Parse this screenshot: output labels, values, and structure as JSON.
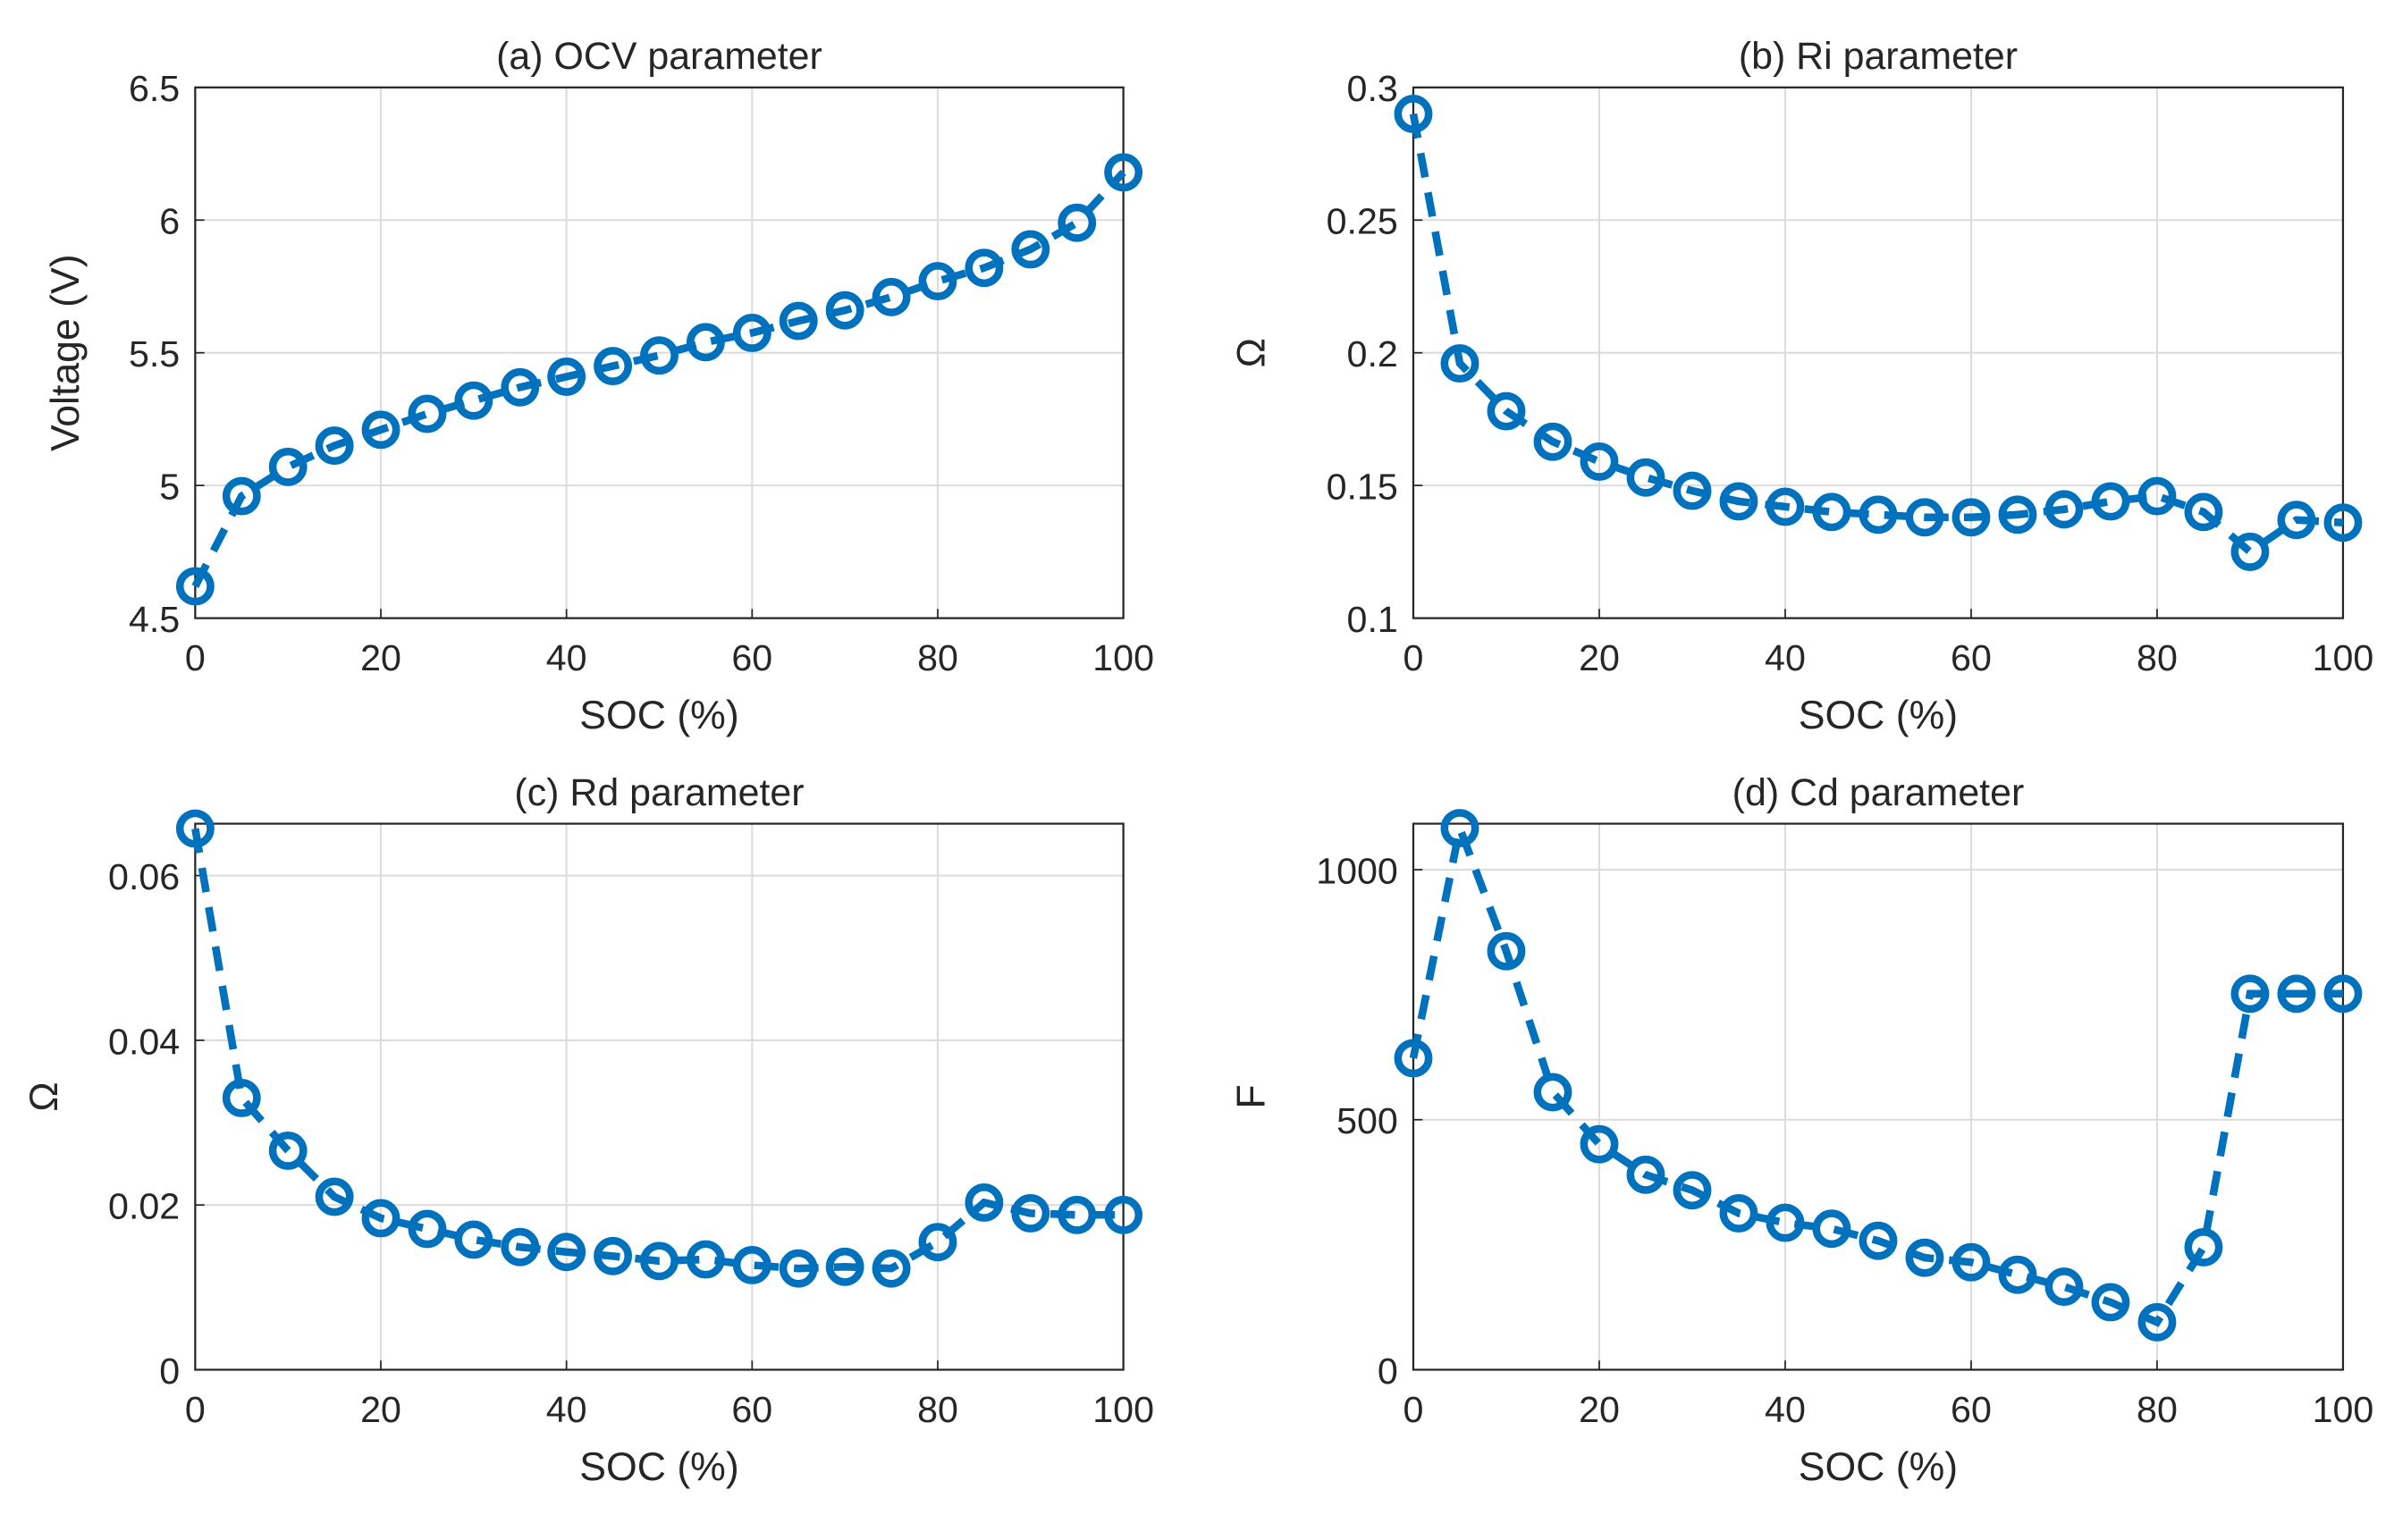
{
  "chart_data": [
    {
      "type": "line",
      "title": "(a) OCV parameter",
      "xlabel": "SOC (%)",
      "ylabel": "Voltage (V)",
      "xlim": [
        0,
        100
      ],
      "ylim": [
        4.5,
        6.5
      ],
      "xticks": [
        0,
        20,
        40,
        60,
        80,
        100
      ],
      "yticks": [
        4.5,
        5,
        5.5,
        6,
        6.5
      ],
      "ytick_labels": [
        "4.5",
        "5",
        "5.5",
        "6",
        "6.5"
      ],
      "grid": true,
      "x": [
        0,
        5,
        10,
        15,
        20,
        25,
        30,
        35,
        40,
        45,
        50,
        55,
        60,
        65,
        70,
        75,
        80,
        85,
        90,
        95,
        100
      ],
      "y": [
        4.62,
        4.96,
        5.07,
        5.15,
        5.21,
        5.27,
        5.32,
        5.37,
        5.41,
        5.45,
        5.49,
        5.54,
        5.575,
        5.62,
        5.66,
        5.71,
        5.77,
        5.82,
        5.89,
        5.99,
        6.18
      ]
    },
    {
      "type": "line",
      "title": "(b) Ri parameter",
      "xlabel": "SOC (%)",
      "ylabel": "Ω",
      "xlim": [
        0,
        100
      ],
      "ylim": [
        0.1,
        0.3
      ],
      "xticks": [
        0,
        20,
        40,
        60,
        80,
        100
      ],
      "yticks": [
        0.1,
        0.15,
        0.2,
        0.25,
        0.3
      ],
      "ytick_labels": [
        "0.1",
        "0.15",
        "0.2",
        "0.25",
        "0.3"
      ],
      "grid": true,
      "x": [
        0,
        5,
        10,
        15,
        20,
        25,
        30,
        35,
        40,
        45,
        50,
        55,
        60,
        65,
        70,
        75,
        80,
        85,
        90,
        95,
        100
      ],
      "y": [
        0.29,
        0.196,
        0.178,
        0.1665,
        0.159,
        0.153,
        0.148,
        0.144,
        0.142,
        0.14,
        0.139,
        0.138,
        0.138,
        0.139,
        0.141,
        0.144,
        0.146,
        0.14,
        0.125,
        0.137,
        0.136
      ]
    },
    {
      "type": "line",
      "title": "(c) Rd parameter",
      "xlabel": "SOC (%)",
      "ylabel": "Ω",
      "xlim": [
        0,
        100
      ],
      "ylim": [
        0,
        0.0663
      ],
      "xticks": [
        0,
        20,
        40,
        60,
        80,
        100
      ],
      "yticks": [
        0,
        0.02,
        0.04,
        0.06
      ],
      "ytick_labels": [
        "0",
        "0.02",
        "0.04",
        "0.06"
      ],
      "grid": true,
      "x": [
        0,
        5,
        10,
        15,
        20,
        25,
        30,
        35,
        40,
        45,
        50,
        55,
        60,
        65,
        70,
        75,
        80,
        85,
        90,
        95,
        100
      ],
      "y": [
        0.0657,
        0.033,
        0.0266,
        0.021,
        0.0184,
        0.0171,
        0.0158,
        0.0149,
        0.0143,
        0.0138,
        0.0132,
        0.0134,
        0.0127,
        0.0123,
        0.0125,
        0.0123,
        0.0155,
        0.0203,
        0.019,
        0.0188,
        0.0188
      ]
    },
    {
      "type": "line",
      "title": "(d) Cd parameter",
      "xlabel": "SOC (%)",
      "ylabel": "F",
      "xlim": [
        0,
        100
      ],
      "ylim": [
        0,
        1092
      ],
      "xticks": [
        0,
        20,
        40,
        60,
        80,
        100
      ],
      "yticks": [
        0,
        500,
        1000
      ],
      "ytick_labels": [
        "0",
        "500",
        "1000"
      ],
      "grid": true,
      "x": [
        0,
        5,
        10,
        15,
        20,
        25,
        30,
        35,
        40,
        45,
        50,
        55,
        60,
        65,
        70,
        75,
        80,
        85,
        90,
        95,
        100
      ],
      "y": [
        623,
        1083,
        837,
        555,
        451,
        390,
        359,
        313,
        294,
        282,
        258,
        224,
        215,
        190,
        166,
        135,
        95,
        245,
        752,
        752,
        752
      ]
    }
  ],
  "colors": {
    "series": "#0072BD",
    "grid": "#DCDCDC",
    "axis": "#262626"
  }
}
